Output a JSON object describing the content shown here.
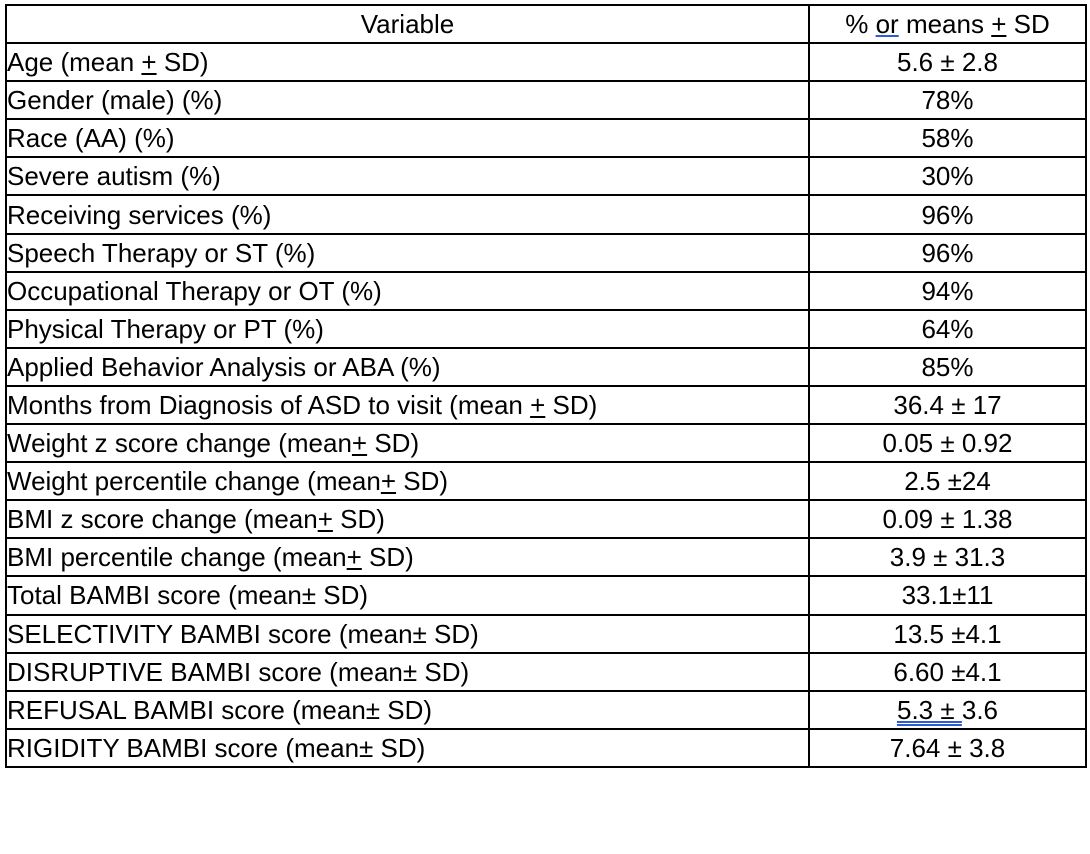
{
  "table": {
    "header": {
      "variable": "Variable",
      "value_prefix": "% ",
      "value_or": "or",
      "value_middle": " means ",
      "value_pm": "+",
      "value_suffix": " SD"
    },
    "rows": [
      {
        "label_parts": [
          "Age (mean ",
          "+",
          " SD)"
        ],
        "value": "5.6 ± 2.8"
      },
      {
        "label_parts": [
          "Gender (male) (%)"
        ],
        "value": "78%"
      },
      {
        "label_parts": [
          "Race (AA) (%)"
        ],
        "value": "58%"
      },
      {
        "label_parts": [
          "Severe autism (%)"
        ],
        "value": "30%"
      },
      {
        "label_parts": [
          "Receiving services (%)"
        ],
        "value": "96%"
      },
      {
        "label_parts": [
          "Speech Therapy or ST (%)"
        ],
        "value": "96%"
      },
      {
        "label_parts": [
          "Occupational Therapy or OT (%)"
        ],
        "value": "94%"
      },
      {
        "label_parts": [
          "Physical Therapy or PT (%)"
        ],
        "value": "64%"
      },
      {
        "label_parts": [
          "Applied Behavior Analysis or ABA (%)"
        ],
        "value": "85%"
      },
      {
        "label_parts": [
          "Months from Diagnosis of ASD to visit (mean ",
          "+",
          " SD)"
        ],
        "value": "36.4 ± 17"
      },
      {
        "label_parts": [
          "Weight z score change (mean",
          "+",
          " SD)"
        ],
        "value": "0.05 ± 0.92"
      },
      {
        "label_parts": [
          "Weight percentile change (mean",
          "+",
          " SD)"
        ],
        "value": "2.5 ±24"
      },
      {
        "label_parts": [
          "BMI z score change (mean",
          "+",
          " SD)"
        ],
        "value": "0.09 ± 1.38"
      },
      {
        "label_parts": [
          "BMI percentile change (mean",
          "+",
          " SD)"
        ],
        "value": "3.9 ± 31.3"
      },
      {
        "label_parts": [
          "Total BAMBI score (mean± SD)"
        ],
        "value": "33.1±11"
      },
      {
        "label_parts": [
          "SELECTIVITY BAMBI score (mean± SD)"
        ],
        "value": "13.5 ±4.1"
      },
      {
        "label_parts": [
          "DISRUPTIVE BAMBI score (mean± SD)"
        ],
        "value": "6.60 ±4.1"
      },
      {
        "label_parts": [
          "REFUSAL BAMBI score (mean± SD)"
        ],
        "value_parts": [
          "5.3 ± ",
          "3.6"
        ],
        "value_underline_double": true
      },
      {
        "label_parts": [
          "RIGIDITY BAMBI score (mean± SD)"
        ],
        "value": "7.64 ± 3.8"
      }
    ]
  }
}
